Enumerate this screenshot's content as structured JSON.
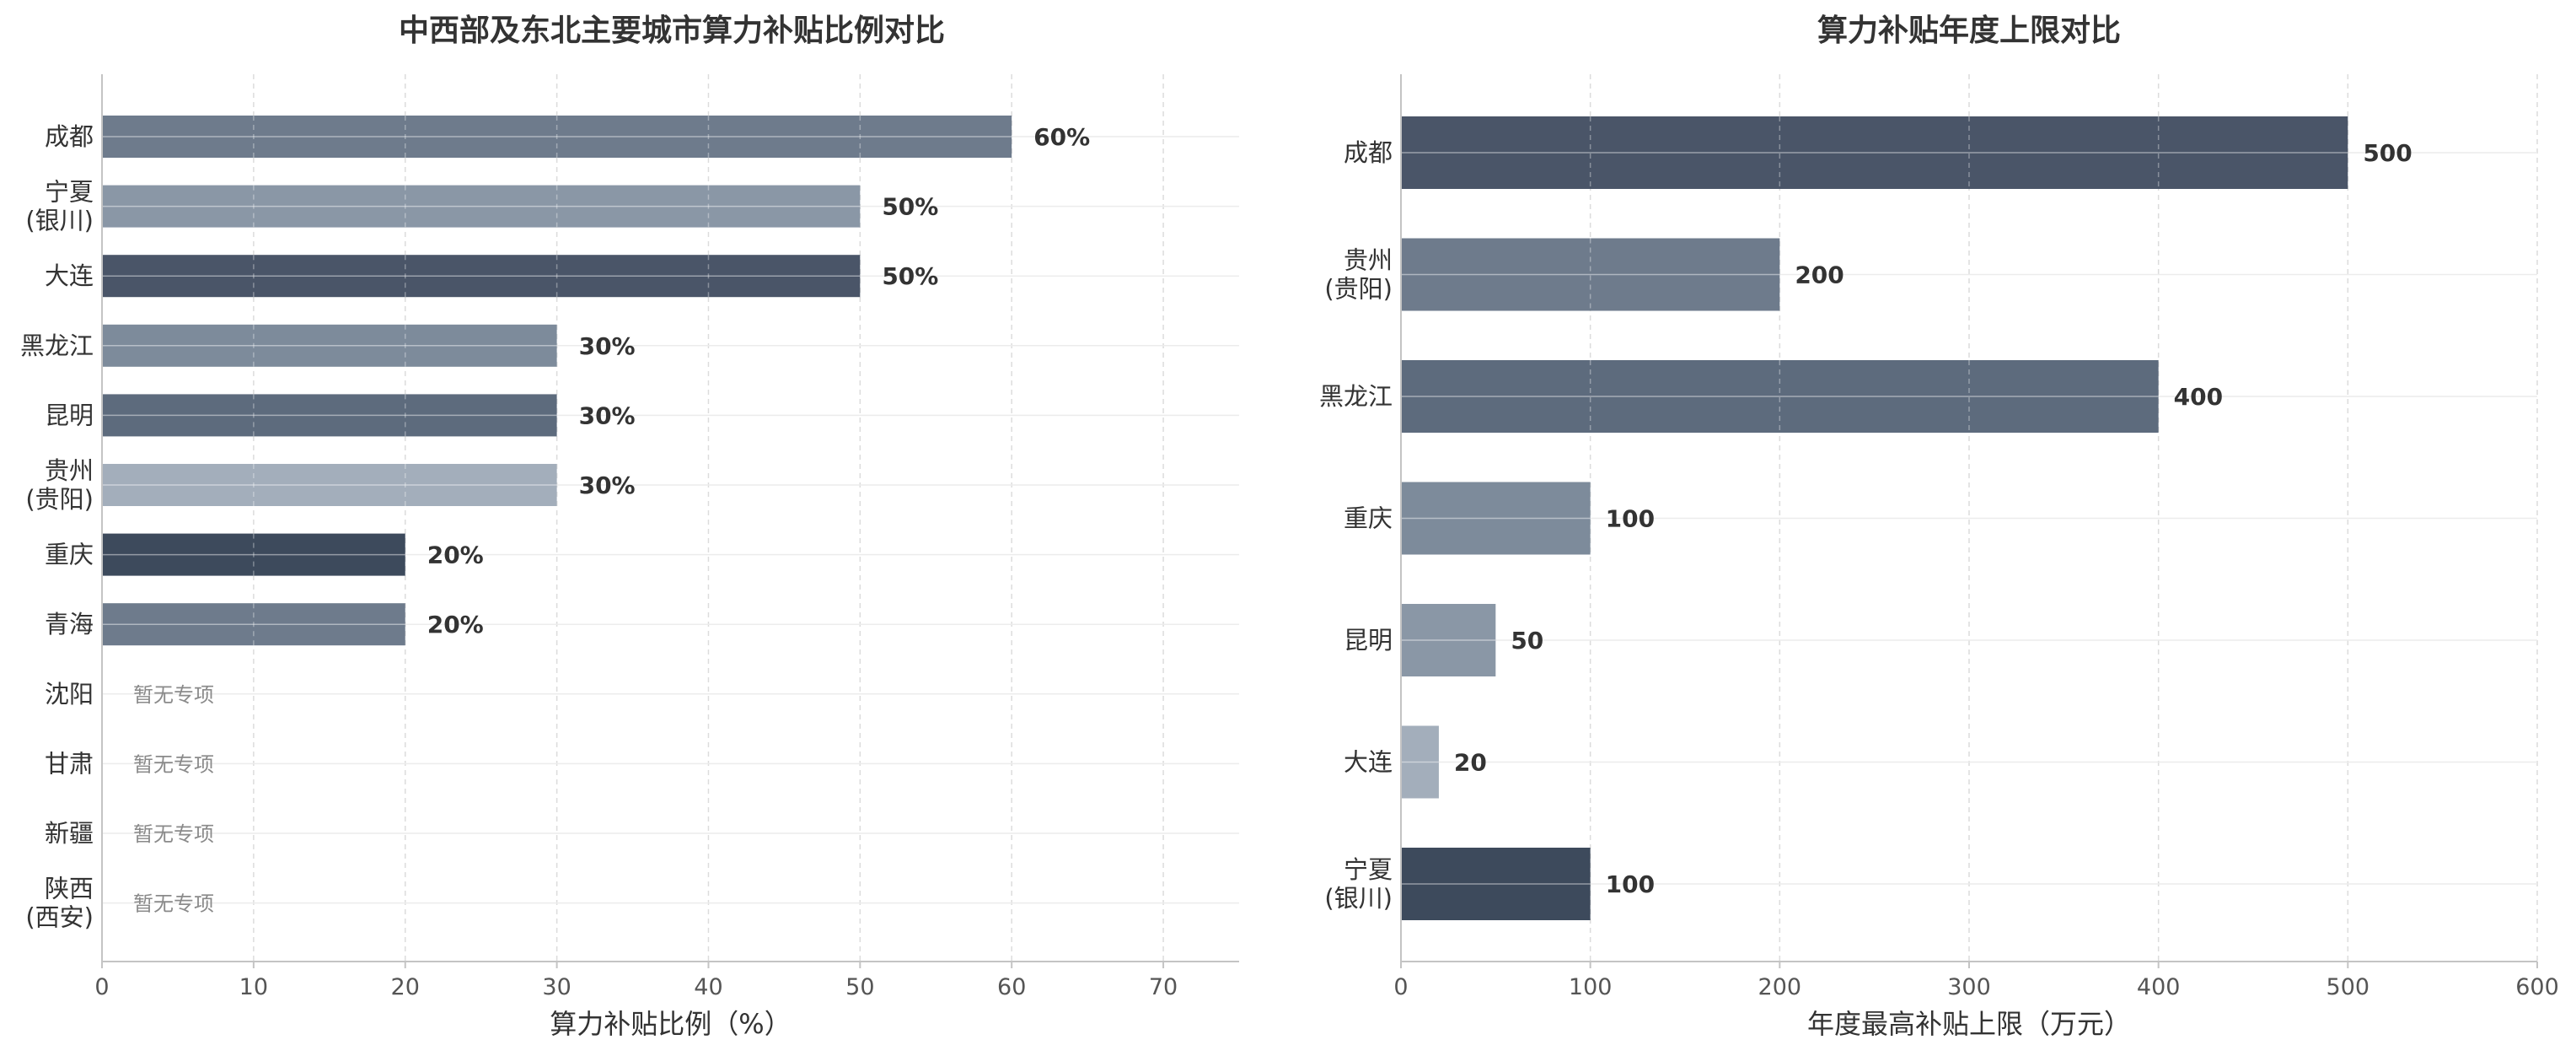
{
  "chart_data": [
    {
      "type": "bar",
      "orientation": "horizontal",
      "title": "中西部及东北主要城市算力补贴比例对比",
      "xlabel": "算力补贴比例（%）",
      "xlim": [
        0,
        75
      ],
      "xticks": [
        0,
        10,
        20,
        30,
        40,
        50,
        60,
        70
      ],
      "grid": true,
      "bars": [
        {
          "label": [
            "成都"
          ],
          "value": 60,
          "value_label": "60%",
          "color": "#6e7b8c"
        },
        {
          "label": [
            "宁夏",
            "(银川)"
          ],
          "value": 50,
          "value_label": "50%",
          "color": "#8a97a6"
        },
        {
          "label": [
            "大连"
          ],
          "value": 50,
          "value_label": "50%",
          "color": "#4a5568"
        },
        {
          "label": [
            "黑龙江"
          ],
          "value": 30,
          "value_label": "30%",
          "color": "#7d8b9b"
        },
        {
          "label": [
            "昆明"
          ],
          "value": 30,
          "value_label": "30%",
          "color": "#5d6b7d"
        },
        {
          "label": [
            "贵州",
            "(贵阳)"
          ],
          "value": 30,
          "value_label": "30%",
          "color": "#a3aebb"
        },
        {
          "label": [
            "重庆"
          ],
          "value": 20,
          "value_label": "20%",
          "color": "#3d4a5c"
        },
        {
          "label": [
            "青海"
          ],
          "value": 20,
          "value_label": "20%",
          "color": "#6e7b8c"
        },
        {
          "label": [
            "沈阳"
          ],
          "value": null,
          "note": "暂无专项"
        },
        {
          "label": [
            "甘肃"
          ],
          "value": null,
          "note": "暂无专项"
        },
        {
          "label": [
            "新疆"
          ],
          "value": null,
          "note": "暂无专项"
        },
        {
          "label": [
            "陕西",
            "(西安)"
          ],
          "value": null,
          "note": "暂无专项"
        }
      ]
    },
    {
      "type": "bar",
      "orientation": "horizontal",
      "title": "算力补贴年度上限对比",
      "xlabel": "年度最高补贴上限（万元）",
      "xlim": [
        0,
        600
      ],
      "xticks": [
        0,
        100,
        200,
        300,
        400,
        500,
        600
      ],
      "grid": true,
      "bars": [
        {
          "label": [
            "成都"
          ],
          "value": 500,
          "value_label": "500",
          "color": "#4a5568"
        },
        {
          "label": [
            "贵州",
            "(贵阳)"
          ],
          "value": 200,
          "value_label": "200",
          "color": "#6e7b8c"
        },
        {
          "label": [
            "黑龙江"
          ],
          "value": 400,
          "value_label": "400",
          "color": "#5d6b7d"
        },
        {
          "label": [
            "重庆"
          ],
          "value": 100,
          "value_label": "100",
          "color": "#7d8b9b"
        },
        {
          "label": [
            "昆明"
          ],
          "value": 50,
          "value_label": "50",
          "color": "#8a97a6"
        },
        {
          "label": [
            "大连"
          ],
          "value": 20,
          "value_label": "20",
          "color": "#a3aebb"
        },
        {
          "label": [
            "宁夏",
            "(银川)"
          ],
          "value": 100,
          "value_label": "100",
          "color": "#3d4a5c"
        }
      ]
    }
  ]
}
